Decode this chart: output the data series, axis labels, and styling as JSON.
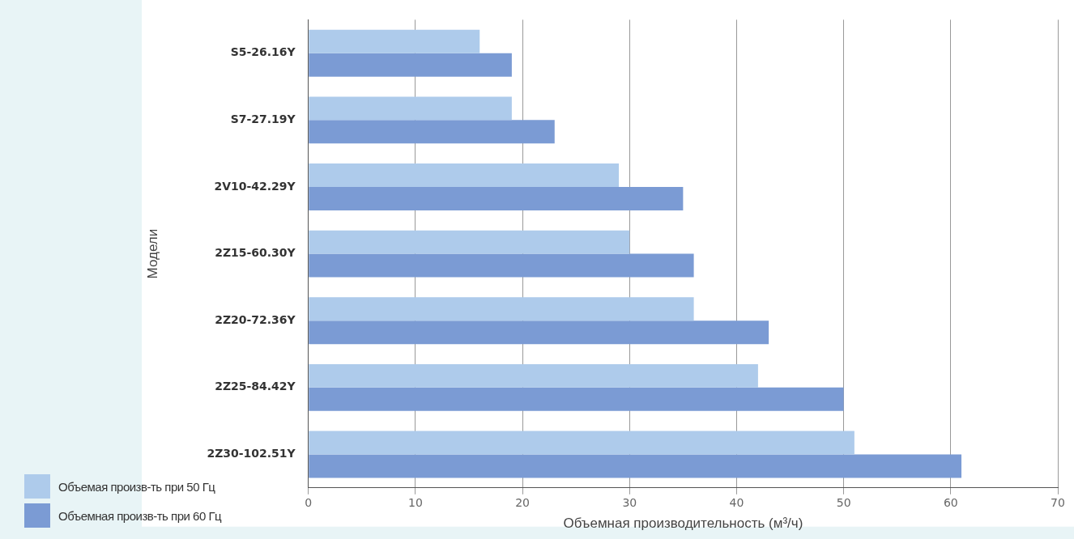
{
  "chart_data": {
    "type": "bar",
    "orientation": "horizontal",
    "xlabel": "Объемная производительность (м³/ч)",
    "ylabel": "Модели",
    "categories": [
      "S5-26.16Y",
      "S7-27.19Y",
      "2V10-42.29Y",
      "2Z15-60.30Y",
      "2Z20-72.36Y",
      "2Z25-84.42Y",
      "2Z30-102.51Y"
    ],
    "series": [
      {
        "name": "Объемая произв-ть при 50 Гц",
        "color": "#aecbeb",
        "values": [
          16,
          19,
          29,
          30,
          36,
          42,
          51
        ]
      },
      {
        "name": "Объемная произв-ть при 60 Гц",
        "color": "#7b9bd4",
        "values": [
          19,
          23,
          35,
          36,
          43,
          50,
          61
        ]
      }
    ],
    "xlim": [
      0,
      70
    ],
    "xticks": [
      0,
      10,
      20,
      30,
      40,
      50,
      60,
      70
    ],
    "grid": "x",
    "legend": "bottom left"
  }
}
